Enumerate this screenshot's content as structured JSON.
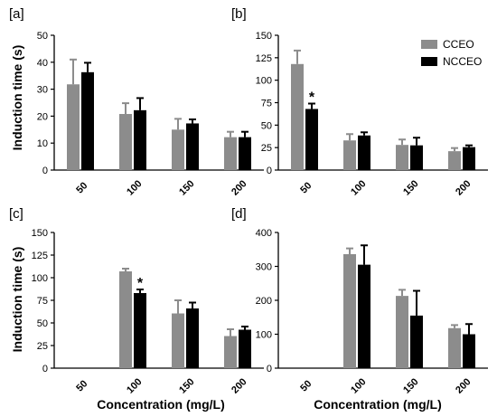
{
  "figure": {
    "ylabel": "Induction time (s)",
    "xlabel": "Concentration (mg/L)",
    "colors": {
      "CCEO": "#8c8c8c",
      "NCCEO": "#000000"
    }
  },
  "legend": [
    {
      "name": "CCEO",
      "color": "#8c8c8c"
    },
    {
      "name": "NCCEO",
      "color": "#000000"
    }
  ],
  "chart_data": [
    {
      "type": "bar",
      "panel": "[a]",
      "categories": [
        "50",
        "100",
        "150",
        "200"
      ],
      "ylim": [
        0,
        50
      ],
      "yticks": [
        0,
        10,
        20,
        30,
        40,
        50
      ],
      "series": [
        {
          "name": "CCEO",
          "values": [
            31.8,
            20.8,
            15.0,
            12.2
          ],
          "errors": [
            9.2,
            4.0,
            4.0,
            2.0
          ]
        },
        {
          "name": "NCCEO",
          "values": [
            36.3,
            22.2,
            17.3,
            12.2
          ],
          "errors": [
            3.5,
            4.5,
            1.5,
            2.0
          ]
        }
      ],
      "annotations": []
    },
    {
      "type": "bar",
      "panel": "[b]",
      "categories": [
        "50",
        "100",
        "150",
        "200"
      ],
      "ylim": [
        0,
        150
      ],
      "yticks": [
        0,
        25,
        50,
        75,
        100,
        125,
        150
      ],
      "series": [
        {
          "name": "CCEO",
          "values": [
            118,
            33,
            28,
            21
          ],
          "errors": [
            15,
            7,
            6,
            3.5
          ]
        },
        {
          "name": "NCCEO",
          "values": [
            68,
            38.5,
            27.5,
            25.5
          ],
          "errors": [
            6,
            3.5,
            8.5,
            2
          ]
        }
      ],
      "annotations": [
        {
          "text": "*",
          "category": "50",
          "series": "NCCEO"
        }
      ]
    },
    {
      "type": "bar",
      "panel": "[c]",
      "categories": [
        "50",
        "100",
        "150",
        "200"
      ],
      "ylim": [
        0,
        150
      ],
      "yticks": [
        0,
        25,
        50,
        75,
        100,
        125,
        150
      ],
      "series": [
        {
          "name": "CCEO",
          "values": [
            null,
            107,
            60.5,
            35.5
          ],
          "errors": [
            null,
            3,
            14.5,
            7.5
          ]
        },
        {
          "name": "NCCEO",
          "values": [
            null,
            83,
            66,
            42.5
          ],
          "errors": [
            null,
            4,
            6.5,
            3.5
          ]
        }
      ],
      "annotations": [
        {
          "text": "*",
          "category": "100",
          "series": "NCCEO"
        }
      ]
    },
    {
      "type": "bar",
      "panel": "[d]",
      "categories": [
        "50",
        "100",
        "150",
        "200"
      ],
      "ylim": [
        0,
        400
      ],
      "yticks": [
        0,
        100,
        200,
        300,
        400
      ],
      "series": [
        {
          "name": "CCEO",
          "values": [
            null,
            336,
            213,
            118
          ],
          "errors": [
            null,
            17,
            18,
            9
          ]
        },
        {
          "name": "NCCEO",
          "values": [
            null,
            305,
            155,
            100
          ],
          "errors": [
            null,
            57,
            73,
            30
          ]
        }
      ],
      "annotations": []
    }
  ]
}
